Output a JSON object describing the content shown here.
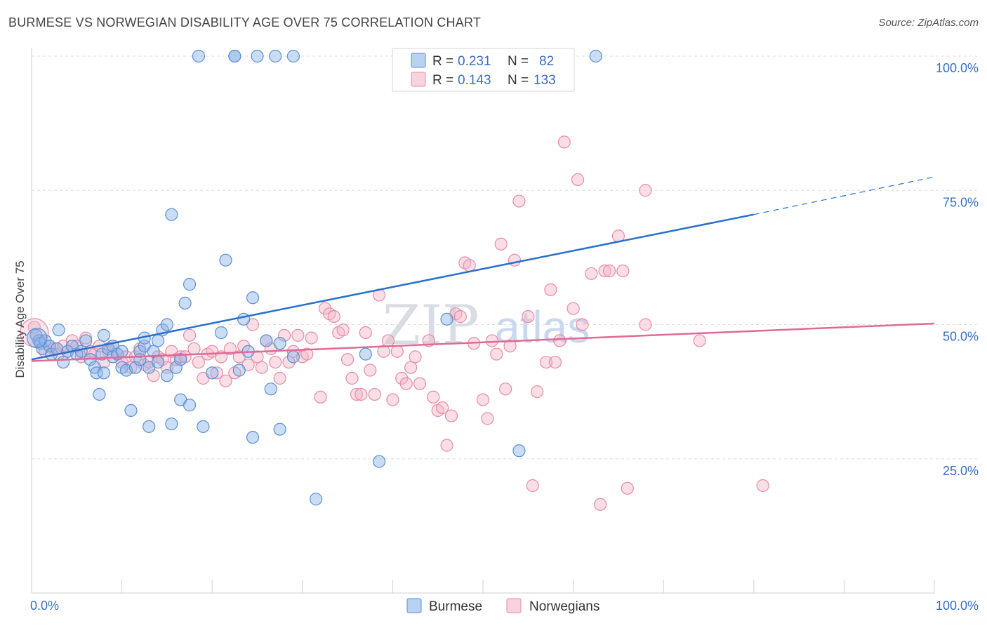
{
  "title": "BURMESE VS NORWEGIAN DISABILITY AGE OVER 75 CORRELATION CHART",
  "source": "Source: ZipAtlas.com",
  "chart_data": {
    "type": "scatter",
    "ylabel": "Disability Age Over 75",
    "xlim": [
      0,
      100
    ],
    "ylim": [
      0,
      100
    ],
    "x_tick_labels": [
      "0.0%",
      "100.0%"
    ],
    "y_ticks": [
      {
        "value": 25,
        "label": "25.0%"
      },
      {
        "value": 50,
        "label": "50.0%"
      },
      {
        "value": 75,
        "label": "75.0%"
      },
      {
        "value": 100,
        "label": "100.0%"
      }
    ],
    "grid": true,
    "legend_placement": "top-center",
    "watermark": {
      "zip": "ZIP",
      "atlas": "atlas"
    },
    "series": [
      {
        "name": "Burmese",
        "color": "#8ab4e8",
        "stroke": "#5a8fd6",
        "line_color": "#2a6fd0",
        "R": "0.231",
        "N": "82",
        "trend": {
          "x0": 0,
          "y0": 43.5,
          "x1": 80,
          "y1": 70.5,
          "dash_to_x": 100,
          "dash_to_y": 77.5
        },
        "points": [
          [
            0.5,
            48
          ],
          [
            0.8,
            47
          ],
          [
            1,
            46.5
          ],
          [
            1.2,
            45.5
          ],
          [
            1.5,
            47
          ],
          [
            2,
            46
          ],
          [
            2.2,
            44.5
          ],
          [
            2.8,
            45.5
          ],
          [
            3,
            49
          ],
          [
            3.5,
            43
          ],
          [
            4,
            45
          ],
          [
            4.5,
            46
          ],
          [
            5,
            44.5
          ],
          [
            5.5,
            45
          ],
          [
            6,
            47
          ],
          [
            6.5,
            43.5
          ],
          [
            7,
            42
          ],
          [
            7.2,
            41
          ],
          [
            7.5,
            37
          ],
          [
            7.8,
            44.5
          ],
          [
            8,
            41
          ],
          [
            8,
            48
          ],
          [
            8.5,
            45.5
          ],
          [
            9,
            46
          ],
          [
            9,
            44
          ],
          [
            9.5,
            44.5
          ],
          [
            10,
            42
          ],
          [
            10,
            45
          ],
          [
            10.5,
            41.5
          ],
          [
            11,
            34
          ],
          [
            11.5,
            42
          ],
          [
            12,
            43.5
          ],
          [
            12,
            45
          ],
          [
            12.5,
            46
          ],
          [
            12.5,
            47.5
          ],
          [
            13,
            31
          ],
          [
            13,
            42
          ],
          [
            13.5,
            45
          ],
          [
            14,
            43
          ],
          [
            14,
            47
          ],
          [
            14.5,
            49
          ],
          [
            15,
            50
          ],
          [
            15,
            40.5
          ],
          [
            15.5,
            31.5
          ],
          [
            15.5,
            70.5
          ],
          [
            16,
            42
          ],
          [
            16.5,
            36
          ],
          [
            16.5,
            43.5
          ],
          [
            17,
            54
          ],
          [
            17.5,
            35
          ],
          [
            17.5,
            57.5
          ],
          [
            18.5,
            100
          ],
          [
            19,
            31
          ],
          [
            20,
            41
          ],
          [
            21,
            48.5
          ],
          [
            21.5,
            62
          ],
          [
            22.5,
            100
          ],
          [
            22.5,
            100
          ],
          [
            23,
            41.5
          ],
          [
            23.5,
            51
          ],
          [
            24,
            45
          ],
          [
            24.5,
            55
          ],
          [
            24.5,
            29
          ],
          [
            25,
            100
          ],
          [
            26,
            47
          ],
          [
            26.5,
            38
          ],
          [
            27,
            100
          ],
          [
            27.5,
            46.5
          ],
          [
            27.5,
            30.5
          ],
          [
            29,
            44
          ],
          [
            29,
            100
          ],
          [
            31.5,
            17.5
          ],
          [
            37,
            44.5
          ],
          [
            38.5,
            24.5
          ],
          [
            46,
            51
          ],
          [
            54,
            26.5
          ],
          [
            62.5,
            100
          ]
        ]
      },
      {
        "name": "Norwegians",
        "color": "#f4b6c8",
        "stroke": "#e88aa6",
        "line_color": "#e06a95",
        "R": "0.143",
        "N": "133",
        "trend": {
          "x0": 0,
          "y0": 43.2,
          "x1": 100,
          "y1": 50.2
        },
        "points": [
          [
            0.3,
            49.5
          ],
          [
            1,
            47
          ],
          [
            1.5,
            45
          ],
          [
            2,
            46
          ],
          [
            2.5,
            45.5
          ],
          [
            3,
            44.5
          ],
          [
            3.5,
            46
          ],
          [
            4,
            45
          ],
          [
            4.5,
            47
          ],
          [
            5,
            46
          ],
          [
            5.5,
            44
          ],
          [
            6,
            47.5
          ],
          [
            6.5,
            45
          ],
          [
            7,
            44.5
          ],
          [
            7.5,
            46
          ],
          [
            8,
            43
          ],
          [
            8.5,
            45
          ],
          [
            9,
            46
          ],
          [
            9.5,
            44.5
          ],
          [
            10,
            43
          ],
          [
            10.5,
            44
          ],
          [
            11,
            42
          ],
          [
            11.5,
            44
          ],
          [
            12,
            45.5
          ],
          [
            12.5,
            42.5
          ],
          [
            13,
            43
          ],
          [
            13.5,
            40.5
          ],
          [
            14,
            44
          ],
          [
            14.5,
            43.5
          ],
          [
            15,
            42
          ],
          [
            15.5,
            45
          ],
          [
            16,
            43.5
          ],
          [
            16.5,
            44
          ],
          [
            17,
            44
          ],
          [
            17.5,
            48
          ],
          [
            18,
            45.5
          ],
          [
            18.5,
            43
          ],
          [
            19,
            40
          ],
          [
            19.5,
            44.5
          ],
          [
            20,
            45
          ],
          [
            20.5,
            41
          ],
          [
            21,
            44
          ],
          [
            21.5,
            39.5
          ],
          [
            22,
            45.5
          ],
          [
            22.5,
            41
          ],
          [
            23,
            44
          ],
          [
            23.5,
            46
          ],
          [
            24,
            42.5
          ],
          [
            24.5,
            50
          ],
          [
            25,
            44
          ],
          [
            25.5,
            42
          ],
          [
            26,
            47
          ],
          [
            26.5,
            45.5
          ],
          [
            27,
            43
          ],
          [
            27.5,
            40
          ],
          [
            28,
            48
          ],
          [
            28.5,
            43
          ],
          [
            29,
            45
          ],
          [
            29.5,
            48
          ],
          [
            30,
            44
          ],
          [
            30.5,
            44.5
          ],
          [
            31,
            47.5
          ],
          [
            32,
            36.5
          ],
          [
            32.5,
            53
          ],
          [
            33,
            52
          ],
          [
            33.5,
            51.5
          ],
          [
            34,
            48.5
          ],
          [
            34.5,
            49
          ],
          [
            35,
            43.5
          ],
          [
            35.5,
            40
          ],
          [
            36,
            37
          ],
          [
            36.5,
            37
          ],
          [
            37,
            48.5
          ],
          [
            37.5,
            41.5
          ],
          [
            38,
            37
          ],
          [
            38.5,
            55.5
          ],
          [
            39,
            45
          ],
          [
            39.5,
            47
          ],
          [
            40,
            36
          ],
          [
            40.5,
            45
          ],
          [
            41,
            40
          ],
          [
            41.5,
            39
          ],
          [
            42,
            42
          ],
          [
            42.5,
            44
          ],
          [
            43,
            39
          ],
          [
            44,
            47
          ],
          [
            44.5,
            36.5
          ],
          [
            45,
            34
          ],
          [
            45.5,
            34.5
          ],
          [
            46,
            27.5
          ],
          [
            46.5,
            33
          ],
          [
            47,
            52
          ],
          [
            47.5,
            51.5
          ],
          [
            48,
            61.5
          ],
          [
            48.5,
            61
          ],
          [
            49,
            46.5
          ],
          [
            50,
            36
          ],
          [
            50.5,
            32.5
          ],
          [
            51,
            47
          ],
          [
            51.5,
            44.5
          ],
          [
            52,
            65
          ],
          [
            52.5,
            38
          ],
          [
            53,
            46
          ],
          [
            53.5,
            62
          ],
          [
            54,
            73
          ],
          [
            55,
            51.5
          ],
          [
            55.5,
            20
          ],
          [
            56,
            37.5
          ],
          [
            57,
            43
          ],
          [
            57.5,
            56.5
          ],
          [
            58,
            43
          ],
          [
            58.5,
            47
          ],
          [
            59,
            84
          ],
          [
            60,
            53
          ],
          [
            60.5,
            77
          ],
          [
            61,
            50
          ],
          [
            62,
            59.5
          ],
          [
            63,
            16.5
          ],
          [
            63.5,
            60
          ],
          [
            64,
            60
          ],
          [
            65,
            66.5
          ],
          [
            65.5,
            60
          ],
          [
            66,
            19.5
          ],
          [
            68,
            75
          ],
          [
            68,
            50
          ],
          [
            74,
            47
          ],
          [
            81,
            20
          ]
        ]
      }
    ]
  }
}
